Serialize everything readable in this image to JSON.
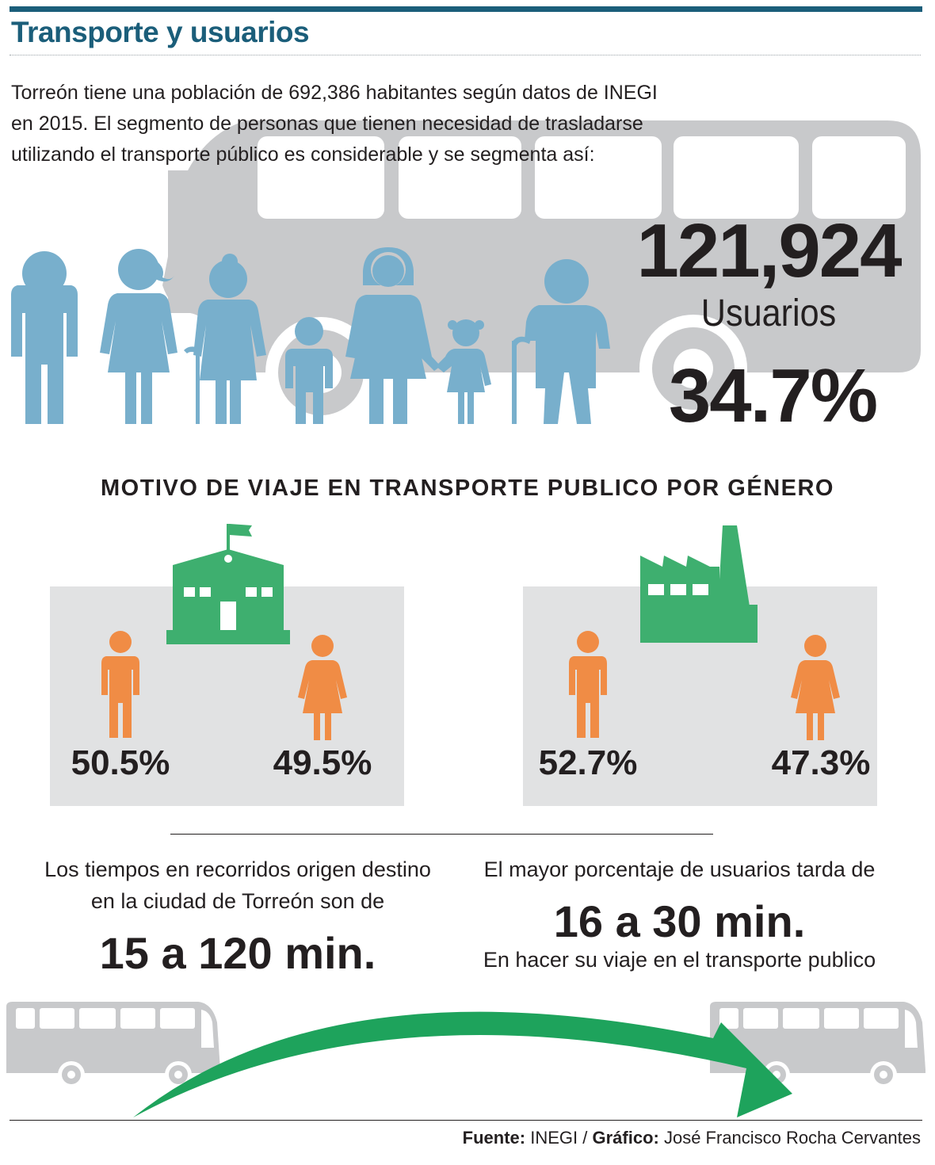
{
  "header": {
    "title": "Transporte y usuarios",
    "intro_lines": [
      "Torreón tiene una población de 692,386 habitantes según datos de INEGI",
      "en 2015. El segmento de personas que tienen necesidad de trasladarse",
      "utilizando el transporte público es considerable y se segmenta así:"
    ]
  },
  "users": {
    "count": "121,924",
    "label": "Usuarios",
    "percent": "34.7%"
  },
  "gender_section": {
    "heading": "MOTIVO DE VIAJE EN TRANSPORTE PUBLICO POR GÉNERO",
    "school": {
      "male_pct": "50.5%",
      "female_pct": "49.5%"
    },
    "work": {
      "male_pct": "52.7%",
      "female_pct": "47.3%"
    }
  },
  "times": {
    "left_line1": "Los tiempos en recorridos origen destino",
    "left_line2": "en la ciudad de Torreón  son de",
    "left_range": "15 a 120 min.",
    "right_line1": "El mayor porcentaje de usuarios tarda de",
    "right_range": "16 a 30 min.",
    "right_line2": "En hacer su viaje en el transporte publico"
  },
  "footer": {
    "source_label": "Fuente:",
    "source": "INEGI /",
    "credit_label": "Gráfico:",
    "credit": "José Francisco Rocha Cervantes"
  },
  "colors": {
    "title_blue": "#1b5e7a",
    "people_blue": "#78afcc",
    "bus_gray": "#c8c9cb",
    "panel_gray": "#e1e2e3",
    "building_green": "#3eaf6f",
    "person_orange": "#f08c45",
    "arrow_green": "#1ea35c"
  },
  "icons": [
    "bus-icon",
    "family-icon",
    "school-icon",
    "factory-icon",
    "male-icon",
    "female-icon",
    "arrow-icon"
  ]
}
